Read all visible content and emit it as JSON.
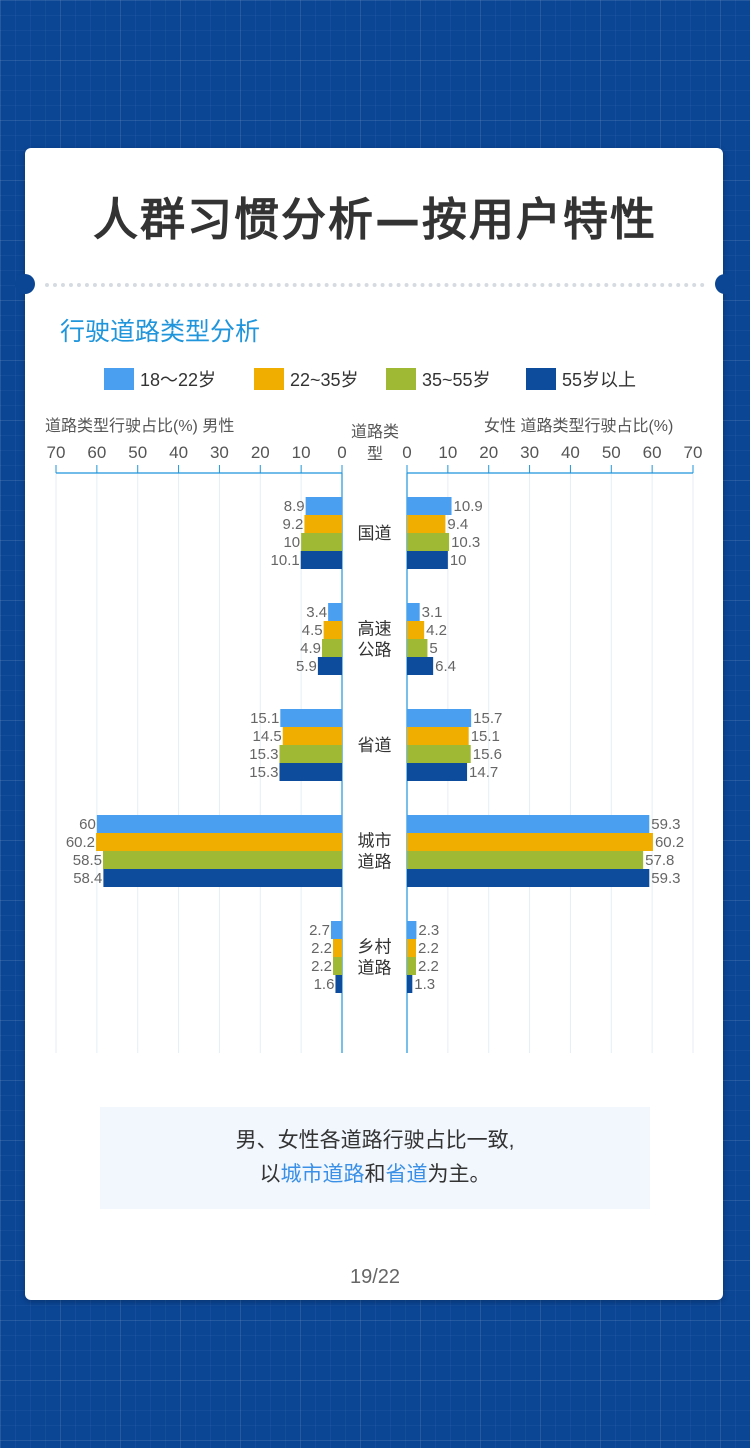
{
  "page": {
    "title": "人群习惯分析—按用户特性",
    "section_title": "行驶道路类型分析",
    "left_axis_caption": "道路类型行驶占比(%)   男性",
    "right_axis_caption": "女性   道路类型行驶占比(%)",
    "road_caption": "道路类型",
    "summary_line1": "男、女性各道路行驶占比一致,",
    "summary_pre": "以",
    "summary_hl1": "城市道路",
    "summary_mid": "和",
    "summary_hl2": "省道",
    "summary_post": "为主。",
    "page_number": "19/22"
  },
  "colors": {
    "background": "#0b4695",
    "accent_text": "#1f95dc",
    "highlight": "#3a8fe6"
  },
  "legend": [
    {
      "label": "18～22岁",
      "color": "#4a9ff0"
    },
    {
      "label": "22~35岁",
      "color": "#f0ae00"
    },
    {
      "label": "35~55岁",
      "color": "#9fb934"
    },
    {
      "label": "55岁以上",
      "color": "#0d4c9c"
    }
  ],
  "chart_data": {
    "type": "bar",
    "orientation": "horizontal-butterfly",
    "categories": [
      "国道",
      "高速公路",
      "省道",
      "城市道路",
      "乡村道路"
    ],
    "xlim": [
      0,
      70
    ],
    "x_ticks": [
      0,
      10,
      20,
      30,
      40,
      50,
      60,
      70
    ],
    "male": [
      {
        "name": "18～22岁",
        "values": [
          8.9,
          3.4,
          15.1,
          60,
          2.7
        ]
      },
      {
        "name": "22~35岁",
        "values": [
          9.2,
          4.5,
          14.5,
          60.2,
          2.2
        ]
      },
      {
        "name": "35~55岁",
        "values": [
          10,
          4.9,
          15.3,
          58.5,
          2.2
        ]
      },
      {
        "name": "55岁以上",
        "values": [
          10.1,
          5.9,
          15.3,
          58.4,
          1.6
        ]
      }
    ],
    "female": [
      {
        "name": "18～22岁",
        "values": [
          10.9,
          3.1,
          15.7,
          59.3,
          2.3
        ]
      },
      {
        "name": "22~35岁",
        "values": [
          9.4,
          4.2,
          15.1,
          60.2,
          2.2
        ]
      },
      {
        "name": "35~55岁",
        "values": [
          10.3,
          5,
          15.6,
          57.8,
          2.2
        ]
      },
      {
        "name": "55岁以上",
        "values": [
          10,
          6.4,
          14.7,
          59.3,
          1.3
        ]
      }
    ]
  }
}
